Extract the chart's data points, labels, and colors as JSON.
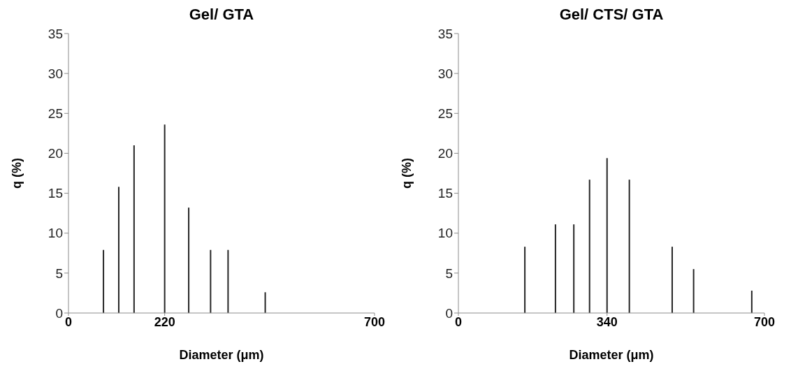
{
  "chart_data": [
    {
      "type": "bar",
      "title": "Gel/ GTA",
      "xlabel": "Diameter (μm)",
      "ylabel": "q (%)",
      "x": [
        80,
        115,
        150,
        220,
        275,
        325,
        365,
        450
      ],
      "values": [
        7.9,
        15.8,
        21.0,
        23.6,
        13.2,
        7.9,
        7.9,
        2.6
      ],
      "color": "#262626",
      "xlim": [
        0,
        700
      ],
      "xticks": [
        0,
        220,
        700
      ],
      "ylim": [
        0,
        35
      ],
      "yticks": [
        0,
        5,
        10,
        15,
        20,
        25,
        30,
        35
      ],
      "grid": false
    },
    {
      "type": "bar",
      "title": "Gel/ CTS/ GTA",
      "xlabel": "Diameter (μm)",
      "ylabel": "q (%)",
      "x": [
        152,
        222,
        264,
        300,
        340,
        391,
        489,
        538,
        671
      ],
      "values": [
        8.3,
        11.1,
        11.1,
        16.7,
        19.4,
        16.7,
        8.3,
        5.5,
        2.8
      ],
      "color": "#262626",
      "xlim": [
        0,
        700
      ],
      "xticks": [
        0,
        340,
        700
      ],
      "ylim": [
        0,
        35
      ],
      "yticks": [
        0,
        5,
        10,
        15,
        20,
        25,
        30,
        35
      ],
      "grid": false
    }
  ]
}
